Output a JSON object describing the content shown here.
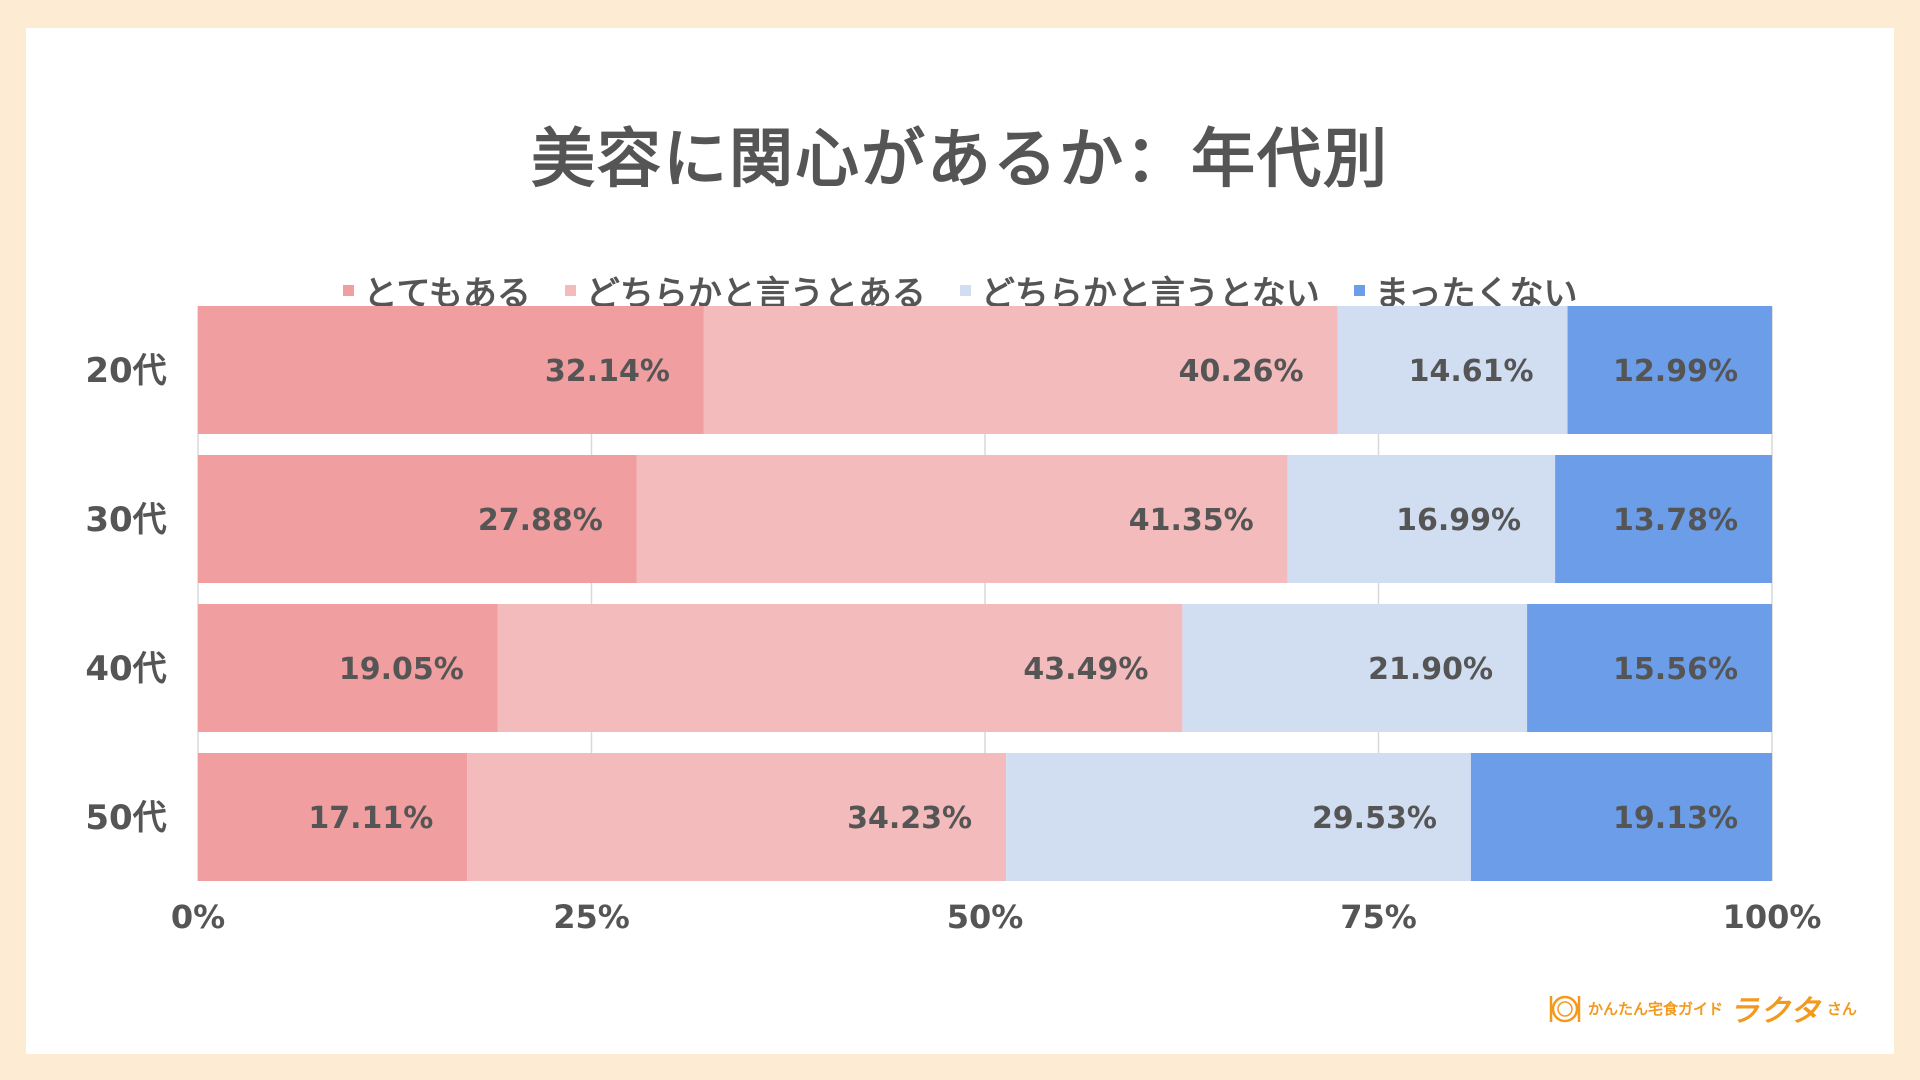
{
  "chart_data": {
    "type": "bar",
    "orientation": "horizontal",
    "stacked": true,
    "title": "美容に関心があるか：年代別",
    "categories": [
      "20代",
      "30代",
      "40代",
      "50代"
    ],
    "series": [
      {
        "name": "とてもある",
        "color": "#f09e9f",
        "values": [
          32.14,
          27.88,
          19.05,
          17.11
        ],
        "labels": [
          "32.14%",
          "27.88%",
          "19.05%",
          "17.11%"
        ]
      },
      {
        "name": "どちらかと言うとある",
        "color": "#f3bbbb",
        "values": [
          40.26,
          41.35,
          43.49,
          34.23
        ],
        "labels": [
          "40.26%",
          "41.35%",
          "43.49%",
          "34.23%"
        ]
      },
      {
        "name": "どちらかと言うとない",
        "color": "#d1def2",
        "values": [
          14.61,
          16.99,
          21.9,
          29.53
        ],
        "labels": [
          "14.61%",
          "16.99%",
          "21.90%",
          "29.53%"
        ]
      },
      {
        "name": "まったくない",
        "color": "#6c9de9",
        "values": [
          12.99,
          13.78,
          15.56,
          19.13
        ],
        "labels": [
          "12.99%",
          "13.78%",
          "15.56%",
          "19.13%"
        ]
      }
    ],
    "xlim": [
      0,
      100
    ],
    "xticks": [
      "0%",
      "25%",
      "50%",
      "75%",
      "100%"
    ],
    "grid": true,
    "legend_position": "top"
  },
  "logo": {
    "text_small": "かんたん宅食ガイド",
    "text_big": "ラクタ",
    "text_suffix": "さん"
  },
  "colors": {
    "text": "#555555",
    "logo": "#f39a1e",
    "background": "#fdebd3"
  }
}
